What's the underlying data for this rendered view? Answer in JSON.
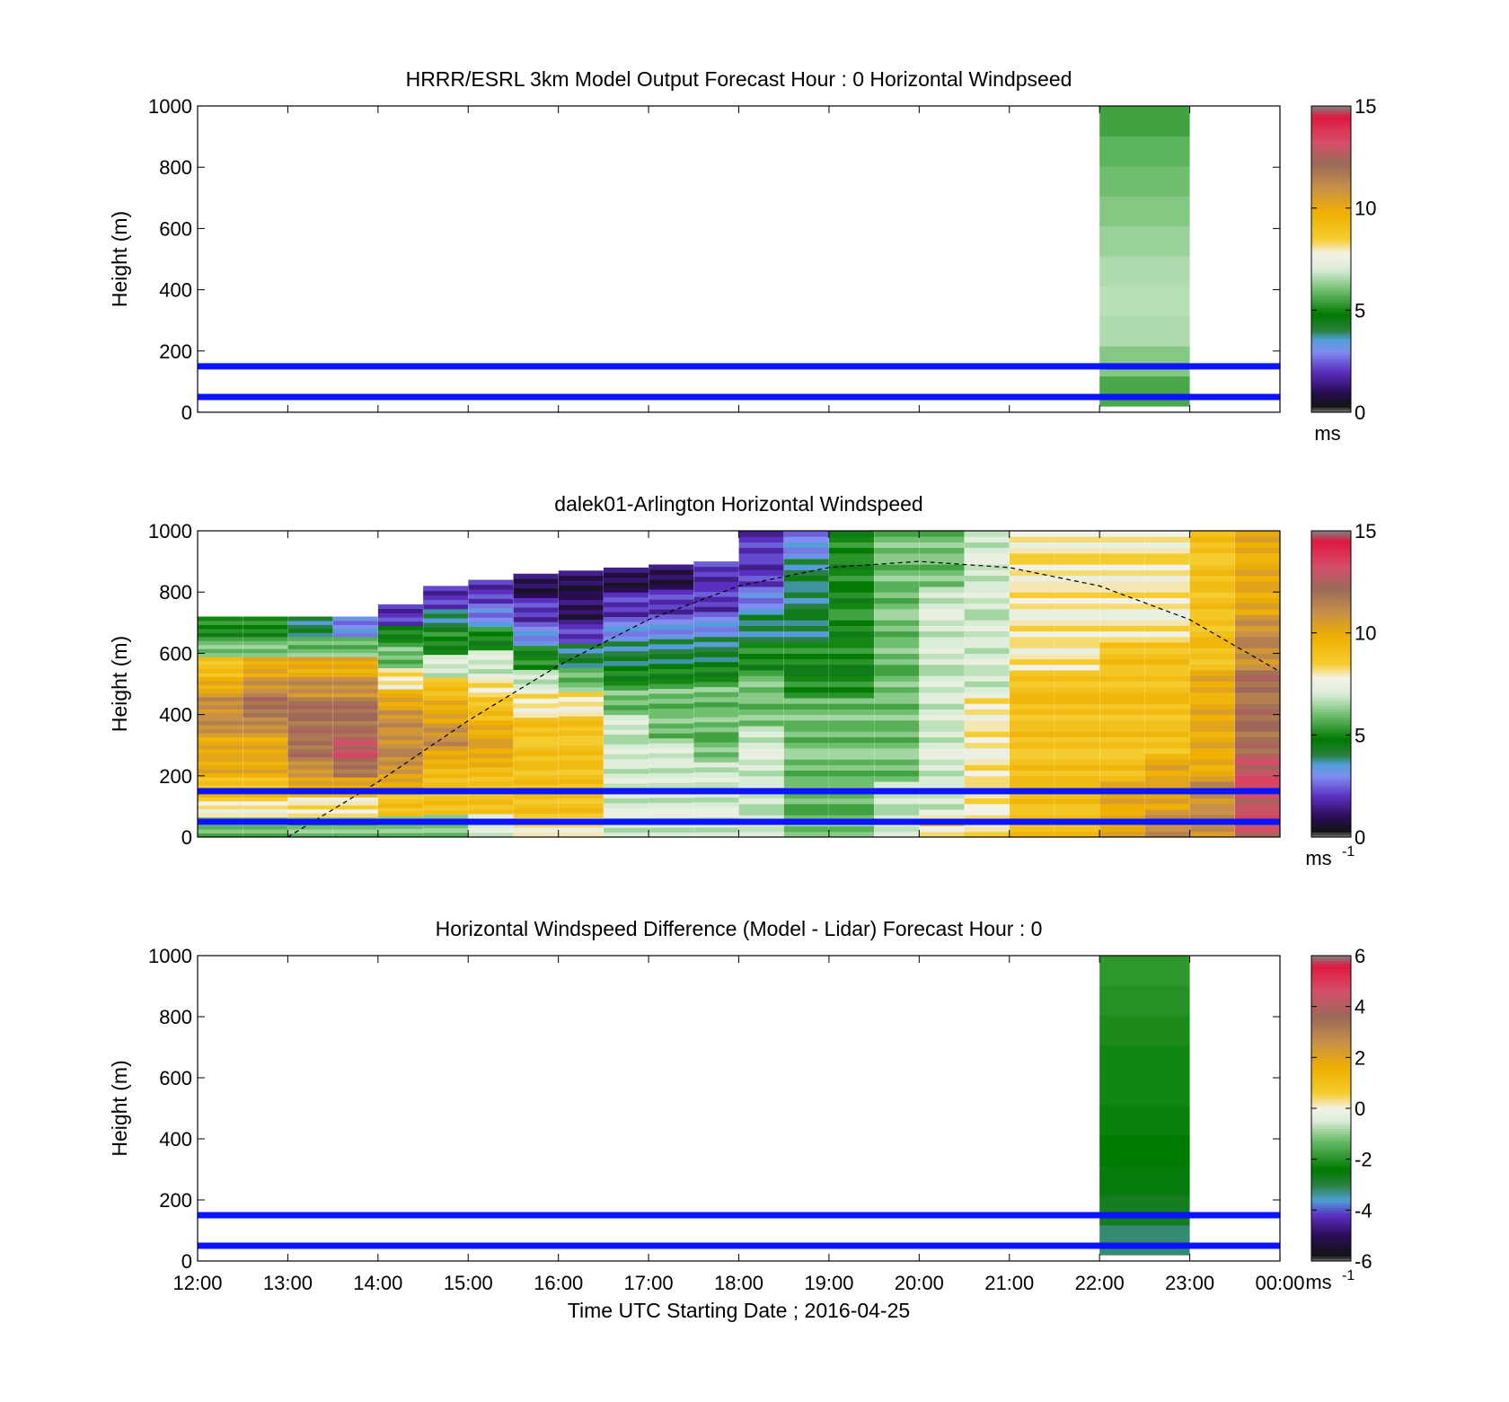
{
  "figure": {
    "xaxis_label": "Time UTC  Starting Date ; 2016-04-25",
    "x_ticks": [
      "12:00",
      "13:00",
      "14:00",
      "15:00",
      "16:00",
      "17:00",
      "18:00",
      "19:00",
      "20:00",
      "21:00",
      "22:00",
      "23:00",
      "00:00"
    ]
  },
  "chart_data": [
    {
      "type": "heatmap",
      "title": "HRRR/ESRL 3km Model Output   Forecast Hour : 0 Horizontal Windpseed",
      "ylabel": "Height (m)",
      "xlabel": "",
      "xlim": [
        "12:00",
        "00:00"
      ],
      "ylim": [
        0,
        1000
      ],
      "y_ticks": [
        "0",
        "200",
        "400",
        "600",
        "800",
        "1000"
      ],
      "colorbar": {
        "range": [
          0,
          15
        ],
        "ticks": [
          "0",
          "5",
          "10",
          "15"
        ],
        "unit": "ms",
        "unit_exp": ""
      },
      "reference_lines_m": [
        50,
        150
      ],
      "data_blocks": [
        {
          "time_start": "22:00",
          "time_end": "23:00",
          "height_bottom": 20,
          "height_top": 1000,
          "values_bottom_to_top": [
            5.6,
            6.2,
            6.6,
            6.7,
            6.6,
            6.4,
            6.2,
            6.0,
            5.8,
            5.5
          ]
        }
      ]
    },
    {
      "type": "heatmap",
      "title": "dalek01-Arlington  Horizontal Windspeed",
      "ylabel": "Height (m)",
      "xlabel": "",
      "xlim": [
        "12:00",
        "00:00"
      ],
      "ylim": [
        0,
        1000
      ],
      "y_ticks": [
        "0",
        "200",
        "400",
        "600",
        "800",
        "1000"
      ],
      "colorbar": {
        "range": [
          0,
          15
        ],
        "ticks": [
          "0",
          "5",
          "10",
          "15"
        ],
        "unit": "ms",
        "unit_exp": "-1"
      },
      "reference_lines_m": [
        50,
        150
      ],
      "dashed_curve": {
        "time": [
          "13:00",
          "14:00",
          "15:00",
          "16:00",
          "17:00",
          "18:00",
          "19:00",
          "20:00",
          "21:00",
          "22:00",
          "23:00",
          "00:00"
        ],
        "height": [
          0,
          180,
          380,
          560,
          710,
          820,
          880,
          900,
          880,
          820,
          710,
          540
        ]
      },
      "columns": [
        {
          "time": "12:15",
          "top": 720,
          "values_bottom_to_top": [
            6,
            8,
            9,
            10,
            10,
            11,
            11,
            10,
            9,
            6,
            5
          ]
        },
        {
          "time": "12:45",
          "top": 720,
          "values_bottom_to_top": [
            6,
            8,
            9,
            10,
            10,
            11,
            12,
            11,
            10,
            6,
            5
          ]
        },
        {
          "time": "13:15",
          "top": 720,
          "values_bottom_to_top": [
            6,
            8,
            10,
            11,
            12,
            12,
            12,
            11,
            10,
            6,
            4
          ]
        },
        {
          "time": "13:45",
          "top": 720,
          "values_bottom_to_top": [
            6,
            8,
            10,
            12,
            13,
            12,
            12,
            11,
            10,
            6,
            3
          ]
        },
        {
          "time": "14:15",
          "top": 760,
          "values_bottom_to_top": [
            6,
            9,
            10,
            11,
            11,
            11,
            10,
            8,
            6,
            5,
            2
          ]
        },
        {
          "time": "14:45",
          "top": 820,
          "values_bottom_to_top": [
            6,
            9,
            9,
            10,
            11,
            10,
            9,
            7,
            5,
            4,
            2
          ]
        },
        {
          "time": "15:15",
          "top": 840,
          "values_bottom_to_top": [
            7,
            9,
            9,
            10,
            10,
            9,
            8,
            7,
            5,
            3,
            2
          ]
        },
        {
          "time": "15:45",
          "top": 860,
          "values_bottom_to_top": [
            8,
            9,
            9,
            9,
            9,
            8,
            7,
            5,
            3,
            2,
            1
          ]
        },
        {
          "time": "16:15",
          "top": 870,
          "values_bottom_to_top": [
            8,
            9,
            9,
            9,
            9,
            8,
            6,
            4,
            2,
            1,
            1
          ]
        },
        {
          "time": "16:45",
          "top": 880,
          "values_bottom_to_top": [
            7,
            7,
            7,
            7,
            7,
            6,
            5,
            4,
            3,
            2,
            1
          ]
        },
        {
          "time": "17:15",
          "top": 890,
          "values_bottom_to_top": [
            7,
            7,
            7,
            7,
            6,
            6,
            5,
            4,
            3,
            2,
            1
          ]
        },
        {
          "time": "17:45",
          "top": 900,
          "values_bottom_to_top": [
            7,
            7,
            7,
            6,
            6,
            6,
            5,
            4,
            3,
            2,
            2
          ]
        },
        {
          "time": "18:15",
          "top": 1000,
          "values_bottom_to_top": [
            7,
            7,
            7,
            7,
            6,
            6,
            5,
            4,
            3,
            2,
            2
          ]
        },
        {
          "time": "18:45",
          "top": 1000,
          "values_bottom_to_top": [
            6,
            6,
            6,
            6,
            6,
            5,
            5,
            4,
            4,
            4,
            3
          ]
        },
        {
          "time": "19:15",
          "top": 1000,
          "values_bottom_to_top": [
            6,
            6,
            6,
            6,
            6,
            5,
            5,
            5,
            5,
            5,
            5
          ]
        },
        {
          "time": "19:45",
          "top": 1000,
          "values_bottom_to_top": [
            7,
            7,
            6,
            6,
            6,
            6,
            6,
            6,
            6,
            6,
            6
          ]
        },
        {
          "time": "20:15",
          "top": 1000,
          "values_bottom_to_top": [
            8,
            7,
            7,
            7,
            7,
            7,
            7,
            7,
            7,
            6,
            6
          ]
        },
        {
          "time": "20:45",
          "top": 1000,
          "values_bottom_to_top": [
            8,
            8,
            8,
            8,
            8,
            7,
            7,
            7,
            7,
            7,
            7
          ]
        },
        {
          "time": "21:15",
          "top": 1000,
          "values_bottom_to_top": [
            9,
            9,
            9,
            9,
            9,
            9,
            8,
            8,
            8,
            8,
            8
          ]
        },
        {
          "time": "21:45",
          "top": 1000,
          "values_bottom_to_top": [
            9,
            9,
            9,
            9,
            9,
            9,
            8,
            8,
            8,
            8,
            8
          ]
        },
        {
          "time": "22:15",
          "top": 1000,
          "values_bottom_to_top": [
            10,
            10,
            9,
            9,
            9,
            9,
            9,
            8,
            8,
            8,
            8
          ]
        },
        {
          "time": "22:45",
          "top": 1000,
          "values_bottom_to_top": [
            11,
            10,
            10,
            9,
            9,
            9,
            9,
            8,
            8,
            8,
            8
          ]
        },
        {
          "time": "23:15",
          "top": 1000,
          "values_bottom_to_top": [
            11,
            11,
            10,
            10,
            10,
            10,
            9,
            9,
            9,
            9,
            9
          ]
        },
        {
          "time": "23:45",
          "top": 1000,
          "values_bottom_to_top": [
            13,
            13,
            13,
            12,
            12,
            12,
            11,
            11,
            10,
            10,
            10
          ]
        }
      ]
    },
    {
      "type": "heatmap",
      "title": "Horizontal Windspeed Difference (Model - Lidar) Forecast Hour : 0",
      "ylabel": "Height (m)",
      "xlabel": "Time UTC  Starting Date ; 2016-04-25",
      "xlim": [
        "12:00",
        "00:00"
      ],
      "ylim": [
        0,
        1000
      ],
      "y_ticks": [
        "0",
        "200",
        "400",
        "600",
        "800",
        "1000"
      ],
      "colorbar": {
        "range": [
          -6,
          6
        ],
        "ticks": [
          "-6",
          "-4",
          "-2",
          "0",
          "2",
          "4",
          "6"
        ],
        "unit": "ms",
        "unit_exp": "-1"
      },
      "reference_lines_m": [
        50,
        150
      ],
      "data_blocks": [
        {
          "time_start": "22:00",
          "time_end": "23:00",
          "height_bottom": 20,
          "height_top": 1000,
          "values_bottom_to_top": [
            -3.2,
            -2.7,
            -2.5,
            -2.4,
            -2.3,
            -2.2,
            -2.2,
            -2.1,
            -2.0,
            -1.9
          ]
        }
      ]
    }
  ]
}
